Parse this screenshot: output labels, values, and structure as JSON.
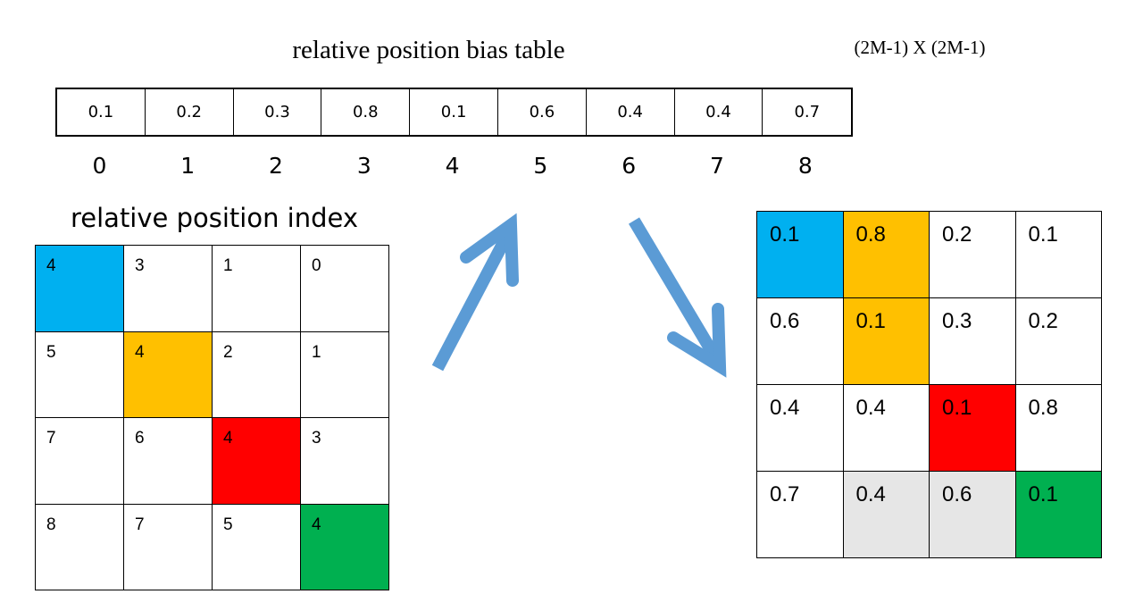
{
  "bias_table": {
    "title": "relative position bias table",
    "dims": "(2M-1) X (2M-1)",
    "values": [
      "0.1",
      "0.2",
      "0.3",
      "0.8",
      "0.1",
      "0.6",
      "0.4",
      "0.4",
      "0.7"
    ],
    "indices": [
      "0",
      "1",
      "2",
      "3",
      "4",
      "5",
      "6",
      "7",
      "8"
    ]
  },
  "index_matrix": {
    "title": "relative position index",
    "rows": [
      [
        "4",
        "3",
        "1",
        "0"
      ],
      [
        "5",
        "4",
        "2",
        "1"
      ],
      [
        "7",
        "6",
        "4",
        "3"
      ],
      [
        "8",
        "7",
        "5",
        "4"
      ]
    ]
  },
  "bias_matrix": {
    "rows": [
      [
        "0.1",
        "0.8",
        "0.2",
        "0.1"
      ],
      [
        "0.6",
        "0.1",
        "0.3",
        "0.2"
      ],
      [
        "0.4",
        "0.4",
        "0.1",
        "0.8"
      ],
      [
        "0.7",
        "0.4",
        "0.6",
        "0.1"
      ]
    ]
  },
  "colors": {
    "blue": "#00b0f0",
    "orange": "#ffc000",
    "red": "#ff0000",
    "green": "#00b050",
    "gray": "#e6e6e6",
    "arrow": "#5b9bd5"
  }
}
